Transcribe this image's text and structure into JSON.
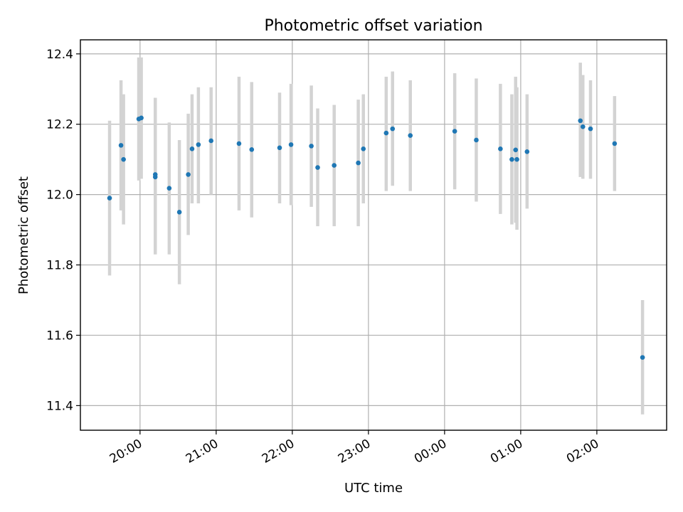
{
  "chart_data": {
    "type": "scatter",
    "title": "Photometric offset variation",
    "xlabel": "UTC time",
    "ylabel": "Photometric offset",
    "x_ticks": [
      "2024-01-01T20:00",
      "2024-01-01T21:00",
      "2024-01-01T22:00",
      "2024-01-01T23:00",
      "2024-01-02T00:00",
      "2024-01-02T01:00",
      "2024-01-02T02:00"
    ],
    "x_tick_labels": [
      "20:00",
      "21:00",
      "22:00",
      "23:00",
      "00:00",
      "01:00",
      "02:00"
    ],
    "xlim": [
      "2024-01-01T19:13",
      "2024-01-02T02:55"
    ],
    "y_ticks": [
      11.4,
      11.6,
      11.8,
      12.0,
      12.2,
      12.4
    ],
    "y_tick_labels": [
      "11.4",
      "11.6",
      "11.8",
      "12.0",
      "12.2",
      "12.4"
    ],
    "ylim": [
      11.33,
      12.44
    ],
    "grid": true,
    "marker_color": "#1f77b4",
    "errorbar_color": "#d3d3d3",
    "points": [
      {
        "x": "2024-01-01T19:36",
        "y": 11.99,
        "yerr_low": 11.77,
        "yerr_high": 12.21
      },
      {
        "x": "2024-01-01T19:45",
        "y": 12.14,
        "yerr_low": 11.955,
        "yerr_high": 12.325
      },
      {
        "x": "2024-01-01T19:47",
        "y": 12.1,
        "yerr_low": 11.915,
        "yerr_high": 12.285
      },
      {
        "x": "2024-01-01T19:59",
        "y": 12.215,
        "yerr_low": 12.04,
        "yerr_high": 12.39
      },
      {
        "x": "2024-01-01T20:01",
        "y": 12.218,
        "yerr_low": 12.045,
        "yerr_high": 12.39
      },
      {
        "x": "2024-01-01T20:12",
        "y": 12.05,
        "yerr_low": 11.83,
        "yerr_high": 12.275
      },
      {
        "x": "2024-01-01T20:12",
        "y": 12.057,
        "yerr_low": 11.84,
        "yerr_high": 12.275
      },
      {
        "x": "2024-01-01T20:23",
        "y": 12.018,
        "yerr_low": 11.83,
        "yerr_high": 12.205
      },
      {
        "x": "2024-01-01T20:31",
        "y": 11.95,
        "yerr_low": 11.745,
        "yerr_high": 12.155
      },
      {
        "x": "2024-01-01T20:38",
        "y": 12.057,
        "yerr_low": 11.885,
        "yerr_high": 12.23
      },
      {
        "x": "2024-01-01T20:41",
        "y": 12.13,
        "yerr_low": 11.975,
        "yerr_high": 12.285
      },
      {
        "x": "2024-01-01T20:46",
        "y": 12.142,
        "yerr_low": 11.975,
        "yerr_high": 12.305
      },
      {
        "x": "2024-01-01T20:56",
        "y": 12.153,
        "yerr_low": 12.0,
        "yerr_high": 12.305
      },
      {
        "x": "2024-01-01T21:18",
        "y": 12.145,
        "yerr_low": 11.955,
        "yerr_high": 12.335
      },
      {
        "x": "2024-01-01T21:28",
        "y": 12.128,
        "yerr_low": 11.935,
        "yerr_high": 12.32
      },
      {
        "x": "2024-01-01T21:50",
        "y": 12.133,
        "yerr_low": 11.975,
        "yerr_high": 12.29
      },
      {
        "x": "2024-01-01T21:59",
        "y": 12.142,
        "yerr_low": 11.97,
        "yerr_high": 12.315
      },
      {
        "x": "2024-01-01T22:15",
        "y": 12.138,
        "yerr_low": 11.965,
        "yerr_high": 12.31
      },
      {
        "x": "2024-01-01T22:20",
        "y": 12.077,
        "yerr_low": 11.91,
        "yerr_high": 12.245
      },
      {
        "x": "2024-01-01T22:33",
        "y": 12.083,
        "yerr_low": 11.91,
        "yerr_high": 12.255
      },
      {
        "x": "2024-01-01T22:52",
        "y": 12.09,
        "yerr_low": 11.91,
        "yerr_high": 12.27
      },
      {
        "x": "2024-01-01T22:56",
        "y": 12.13,
        "yerr_low": 11.975,
        "yerr_high": 12.285
      },
      {
        "x": "2024-01-01T23:14",
        "y": 12.175,
        "yerr_low": 12.01,
        "yerr_high": 12.335
      },
      {
        "x": "2024-01-01T23:19",
        "y": 12.187,
        "yerr_low": 12.025,
        "yerr_high": 12.35
      },
      {
        "x": "2024-01-01T23:33",
        "y": 12.168,
        "yerr_low": 12.01,
        "yerr_high": 12.325
      },
      {
        "x": "2024-01-02T00:08",
        "y": 12.18,
        "yerr_low": 12.015,
        "yerr_high": 12.345
      },
      {
        "x": "2024-01-02T00:25",
        "y": 12.155,
        "yerr_low": 11.98,
        "yerr_high": 12.33
      },
      {
        "x": "2024-01-02T00:44",
        "y": 12.13,
        "yerr_low": 11.945,
        "yerr_high": 12.315
      },
      {
        "x": "2024-01-02T00:53",
        "y": 12.1,
        "yerr_low": 11.915,
        "yerr_high": 12.285
      },
      {
        "x": "2024-01-02T00:56",
        "y": 12.127,
        "yerr_low": 11.92,
        "yerr_high": 12.335
      },
      {
        "x": "2024-01-02T00:57",
        "y": 12.1,
        "yerr_low": 11.9,
        "yerr_high": 12.305
      },
      {
        "x": "2024-01-02T01:05",
        "y": 12.122,
        "yerr_low": 11.96,
        "yerr_high": 12.285
      },
      {
        "x": "2024-01-02T01:47",
        "y": 12.21,
        "yerr_low": 12.05,
        "yerr_high": 12.375
      },
      {
        "x": "2024-01-02T01:49",
        "y": 12.193,
        "yerr_low": 12.045,
        "yerr_high": 12.34
      },
      {
        "x": "2024-01-02T01:55",
        "y": 12.187,
        "yerr_low": 12.045,
        "yerr_high": 12.325
      },
      {
        "x": "2024-01-02T02:14",
        "y": 12.145,
        "yerr_low": 12.01,
        "yerr_high": 12.28
      },
      {
        "x": "2024-01-02T02:36",
        "y": 11.537,
        "yerr_low": 11.375,
        "yerr_high": 11.7
      }
    ]
  }
}
